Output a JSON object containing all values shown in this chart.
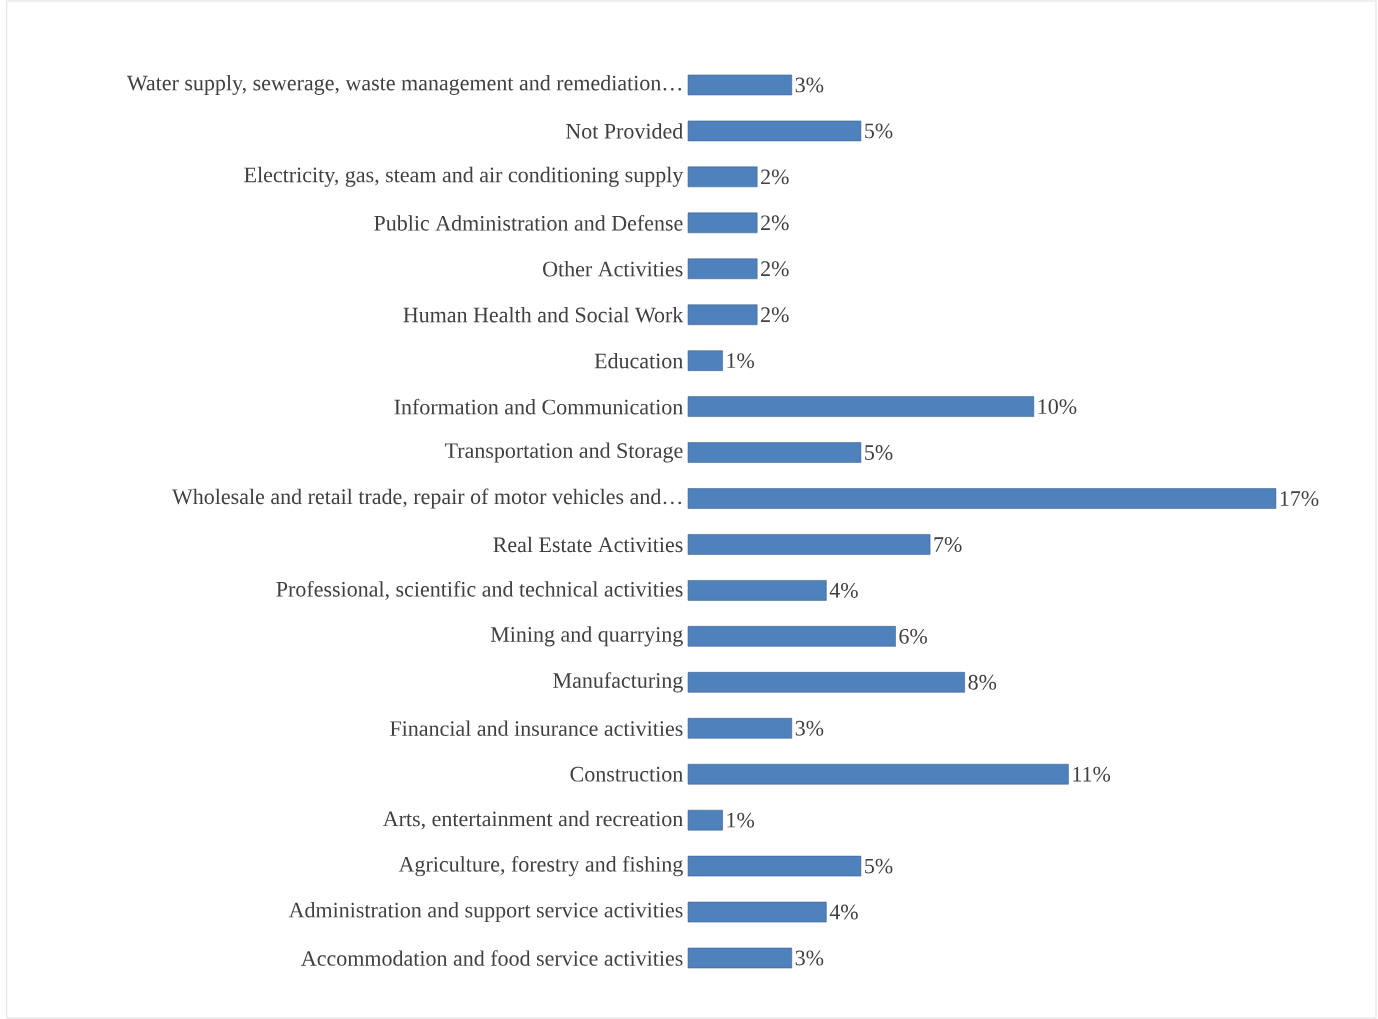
{
  "chart_data": {
    "type": "bar",
    "orientation": "horizontal",
    "color": "#4f81bd",
    "categories": [
      "Water supply, sewerage, waste management and remediation…",
      "Not Provided",
      "Electricity, gas, steam and air conditioning supply",
      "Public Administration and Defense",
      "Other Activities",
      "Human Health and Social Work",
      "Education",
      "Information and Communication",
      "Transportation and Storage",
      "Wholesale and retail trade, repair of motor vehicles and…",
      "Real Estate Activities",
      "Professional, scientific and technical activities",
      "Mining and quarrying",
      "Manufacturing",
      "Financial and insurance activities",
      "Construction",
      "Arts, entertainment and recreation",
      "Agriculture, forestry and fishing",
      "Administration and support service activities",
      "Accommodation and food service activities"
    ],
    "values": [
      3,
      5,
      2,
      2,
      2,
      2,
      1,
      10,
      5,
      17,
      7,
      4,
      6,
      8,
      3,
      11,
      1,
      5,
      4,
      3
    ],
    "value_labels": [
      "3%",
      "5%",
      "2%",
      "2%",
      "2%",
      "2%",
      "1%",
      "10%",
      "5%",
      "17%",
      "7%",
      "4%",
      "6%",
      "8%",
      "3%",
      "11%",
      "1%",
      "5%",
      "4%",
      "3%"
    ]
  }
}
